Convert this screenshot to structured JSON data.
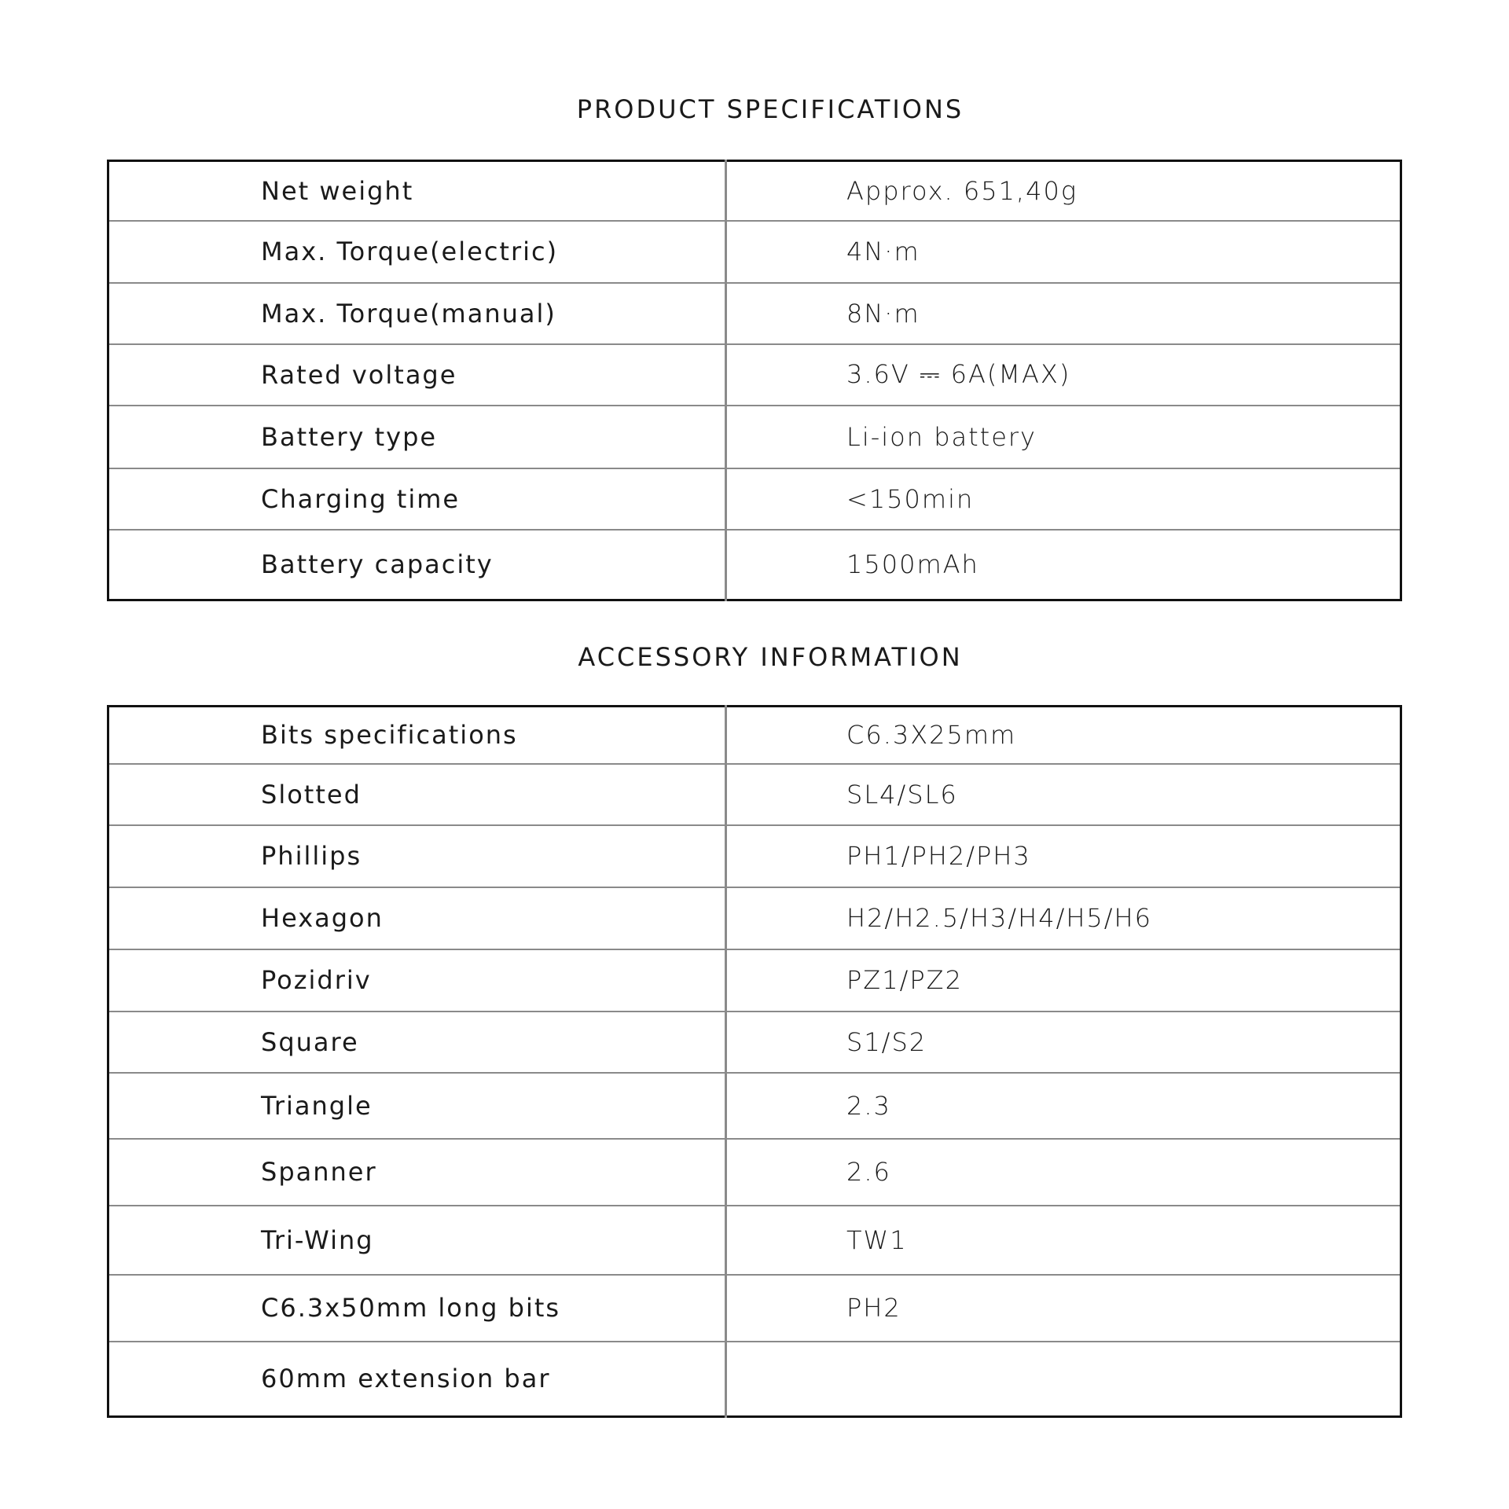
{
  "product": {
    "title": "PRODUCT SPECIFICATIONS",
    "rows": [
      {
        "label": "Net weight",
        "value": "Approx. 651,40g"
      },
      {
        "label": "Max. Torque(electric)",
        "value": "4N·m"
      },
      {
        "label": "Max. Torque(manual)",
        "value": "8N·m"
      },
      {
        "label": "Rated voltage",
        "value": "3.6V ⎓ 6A(MAX)"
      },
      {
        "label": "Battery type",
        "value": "Li-ion battery"
      },
      {
        "label": "Charging time",
        "value": "<150min"
      },
      {
        "label": "Battery capacity",
        "value": "1500mAh"
      }
    ]
  },
  "accessory": {
    "title": "ACCESSORY INFORMATION",
    "rows": [
      {
        "label": "Bits specifications",
        "value": "C6.3X25mm"
      },
      {
        "label": "Slotted",
        "value": "SL4/SL6"
      },
      {
        "label": "Phillips",
        "value": "PH1/PH2/PH3"
      },
      {
        "label": "Hexagon",
        "value": "H2/H2.5/H3/H4/H5/H6"
      },
      {
        "label": "Pozidriv",
        "value": "PZ1/PZ2"
      },
      {
        "label": "Square",
        "value": "S1/S2"
      },
      {
        "label": "Triangle",
        "value": "2.3"
      },
      {
        "label": "Spanner",
        "value": "2.6"
      },
      {
        "label": "Tri-Wing",
        "value": "TW1"
      },
      {
        "label": "C6.3x50mm long bits",
        "value": "PH2"
      },
      {
        "label": "60mm extension bar",
        "value": ""
      }
    ]
  }
}
